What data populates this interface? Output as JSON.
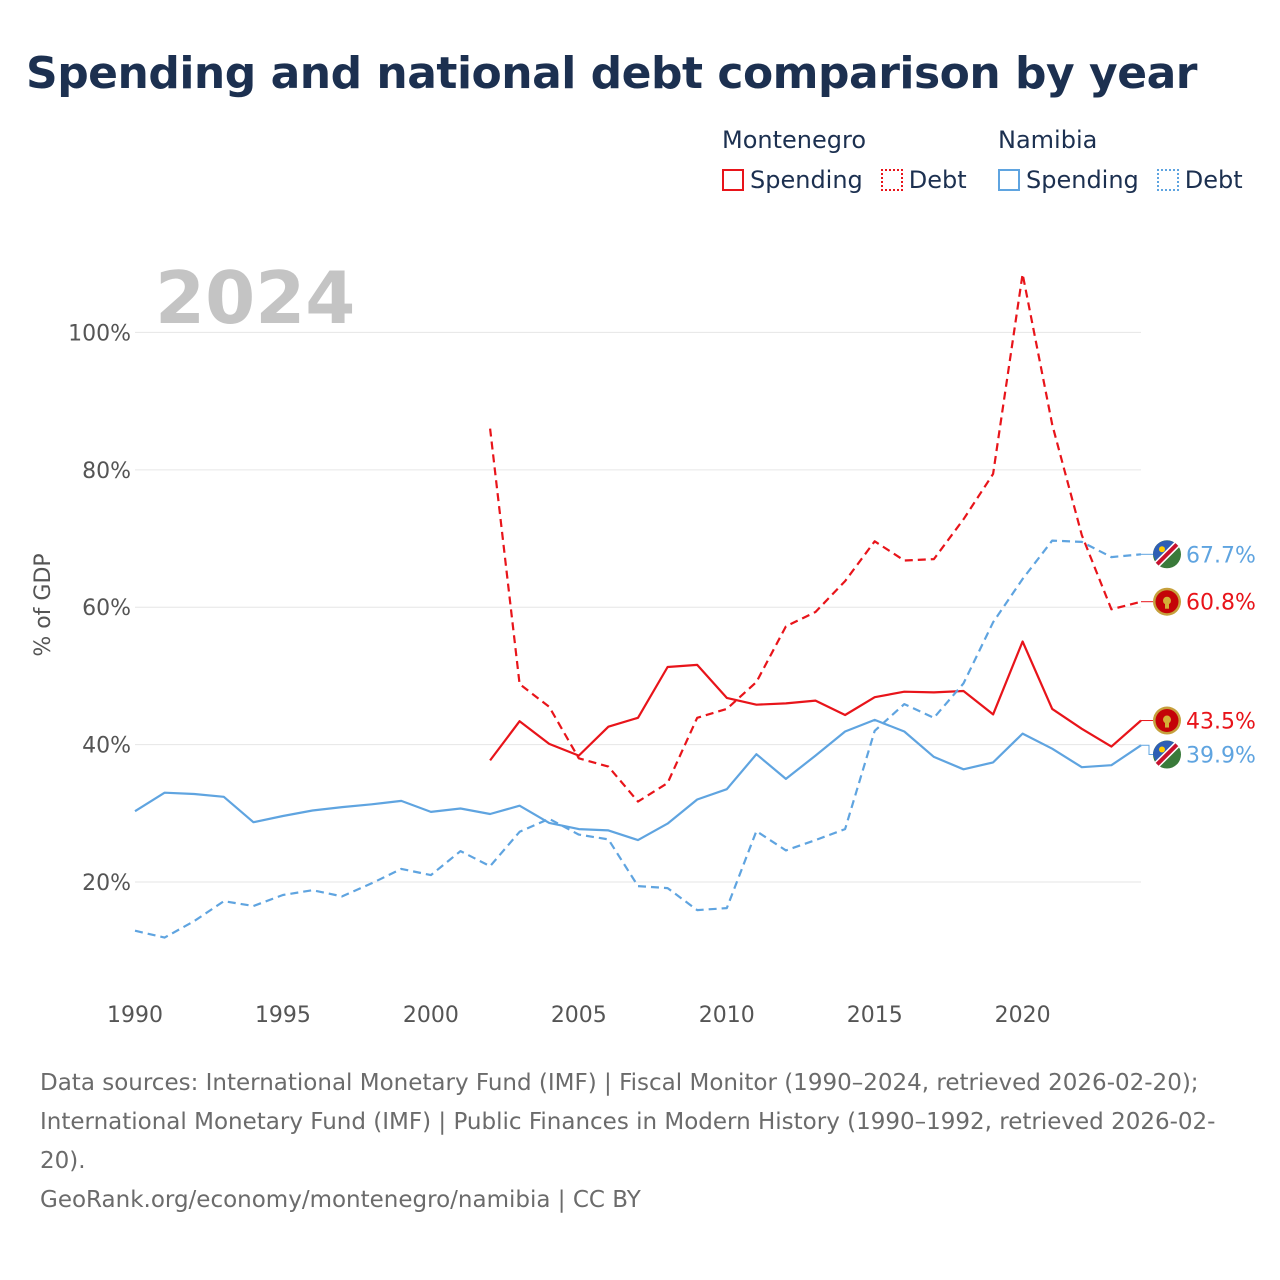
{
  "title": "Spending and national debt comparison by year",
  "legend": {
    "groups": [
      {
        "country": "Montenegro",
        "spending_label": "Spending",
        "debt_label": "Debt",
        "color": "#e8141a"
      },
      {
        "country": "Namibia",
        "spending_label": "Spending",
        "debt_label": "Debt",
        "color": "#5fa4e0"
      }
    ]
  },
  "footer": {
    "sources": "Data sources: International Monetary Fund (IMF) | Fiscal Monitor (1990–2024, retrieved 2026-02-20); International Monetary Fund (IMF) | Public Finances in Modern History (1990–1992, retrieved 2026-02-20).",
    "credit": "GeoRank.org/economy/montenegro/namibia | CC BY"
  },
  "chart_data": {
    "type": "line",
    "year_label": "2024",
    "ylabel": "% of GDP",
    "xlabel": "",
    "xlim": [
      1990,
      2024
    ],
    "ylim": [
      5,
      112
    ],
    "x_ticks": [
      1990,
      1995,
      2000,
      2005,
      2010,
      2015,
      2020
    ],
    "y_ticks": [
      20,
      40,
      60,
      80,
      100
    ],
    "y_tick_labels": [
      "20%",
      "40%",
      "60%",
      "80%",
      "100%"
    ],
    "series": [
      {
        "name": "Montenegro Spending",
        "country": "Montenegro",
        "kind": "spending",
        "color": "#e8141a",
        "dashed": false,
        "end_label": "43.5%",
        "points": [
          [
            2002,
            37.7
          ],
          [
            2003,
            43.4
          ],
          [
            2004,
            40.1
          ],
          [
            2005,
            38.4
          ],
          [
            2006,
            42.6
          ],
          [
            2007,
            43.9
          ],
          [
            2008,
            51.3
          ],
          [
            2009,
            51.6
          ],
          [
            2010,
            46.8
          ],
          [
            2011,
            45.8
          ],
          [
            2012,
            46.0
          ],
          [
            2013,
            46.4
          ],
          [
            2014,
            44.3
          ],
          [
            2015,
            46.9
          ],
          [
            2016,
            47.7
          ],
          [
            2017,
            47.6
          ],
          [
            2018,
            47.8
          ],
          [
            2019,
            44.4
          ],
          [
            2020,
            55.0
          ],
          [
            2021,
            45.2
          ],
          [
            2022,
            42.3
          ],
          [
            2023,
            39.7
          ],
          [
            2024,
            43.5
          ]
        ]
      },
      {
        "name": "Montenegro Debt",
        "country": "Montenegro",
        "kind": "debt",
        "color": "#e8141a",
        "dashed": true,
        "end_label": "60.8%",
        "points": [
          [
            2002,
            86.0
          ],
          [
            2003,
            48.8
          ],
          [
            2004,
            45.5
          ],
          [
            2005,
            38.0
          ],
          [
            2006,
            36.8
          ],
          [
            2007,
            31.7
          ],
          [
            2008,
            34.4
          ],
          [
            2009,
            43.9
          ],
          [
            2010,
            45.2
          ],
          [
            2011,
            49.1
          ],
          [
            2012,
            57.2
          ],
          [
            2013,
            59.3
          ],
          [
            2014,
            63.8
          ],
          [
            2015,
            69.6
          ],
          [
            2016,
            66.8
          ],
          [
            2017,
            67.0
          ],
          [
            2018,
            72.8
          ],
          [
            2019,
            79.4
          ],
          [
            2020,
            108.5
          ],
          [
            2021,
            86.6
          ],
          [
            2022,
            70.5
          ],
          [
            2023,
            59.7
          ],
          [
            2024,
            60.8
          ]
        ]
      },
      {
        "name": "Namibia Spending",
        "country": "Namibia",
        "kind": "spending",
        "color": "#5fa4e0",
        "dashed": false,
        "end_label": "39.9%",
        "points": [
          [
            1990,
            30.3
          ],
          [
            1991,
            33.0
          ],
          [
            1992,
            32.8
          ],
          [
            1993,
            32.4
          ],
          [
            1994,
            28.7
          ],
          [
            1995,
            29.6
          ],
          [
            1996,
            30.4
          ],
          [
            1997,
            30.9
          ],
          [
            1998,
            31.3
          ],
          [
            1999,
            31.8
          ],
          [
            2000,
            30.2
          ],
          [
            2001,
            30.7
          ],
          [
            2002,
            29.9
          ],
          [
            2003,
            31.1
          ],
          [
            2004,
            28.6
          ],
          [
            2005,
            27.7
          ],
          [
            2006,
            27.5
          ],
          [
            2007,
            26.1
          ],
          [
            2008,
            28.5
          ],
          [
            2009,
            32.0
          ],
          [
            2010,
            33.5
          ],
          [
            2011,
            38.6
          ],
          [
            2012,
            35.0
          ],
          [
            2013,
            38.4
          ],
          [
            2014,
            41.9
          ],
          [
            2015,
            43.6
          ],
          [
            2016,
            41.9
          ],
          [
            2017,
            38.2
          ],
          [
            2018,
            36.4
          ],
          [
            2019,
            37.4
          ],
          [
            2020,
            41.6
          ],
          [
            2021,
            39.4
          ],
          [
            2022,
            36.7
          ],
          [
            2023,
            37.0
          ],
          [
            2024,
            39.9
          ]
        ]
      },
      {
        "name": "Namibia Debt",
        "country": "Namibia",
        "kind": "debt",
        "color": "#5fa4e0",
        "dashed": true,
        "end_label": "67.7%",
        "points": [
          [
            1990,
            12.9
          ],
          [
            1991,
            11.9
          ],
          [
            1992,
            14.3
          ],
          [
            1993,
            17.2
          ],
          [
            1994,
            16.5
          ],
          [
            1995,
            18.1
          ],
          [
            1996,
            18.8
          ],
          [
            1997,
            17.9
          ],
          [
            1998,
            19.8
          ],
          [
            1999,
            21.9
          ],
          [
            2000,
            21.0
          ],
          [
            2001,
            24.5
          ],
          [
            2002,
            22.3
          ],
          [
            2003,
            27.3
          ],
          [
            2004,
            29.2
          ],
          [
            2005,
            26.9
          ],
          [
            2006,
            26.2
          ],
          [
            2007,
            19.4
          ],
          [
            2008,
            19.1
          ],
          [
            2009,
            15.9
          ],
          [
            2010,
            16.2
          ],
          [
            2011,
            27.4
          ],
          [
            2012,
            24.6
          ],
          [
            2013,
            26.1
          ],
          [
            2014,
            27.7
          ],
          [
            2015,
            42.0
          ],
          [
            2016,
            45.9
          ],
          [
            2017,
            43.9
          ],
          [
            2018,
            48.9
          ],
          [
            2019,
            57.8
          ],
          [
            2020,
            64.1
          ],
          [
            2021,
            69.7
          ],
          [
            2022,
            69.5
          ],
          [
            2023,
            67.3
          ],
          [
            2024,
            67.7
          ]
        ]
      }
    ]
  }
}
